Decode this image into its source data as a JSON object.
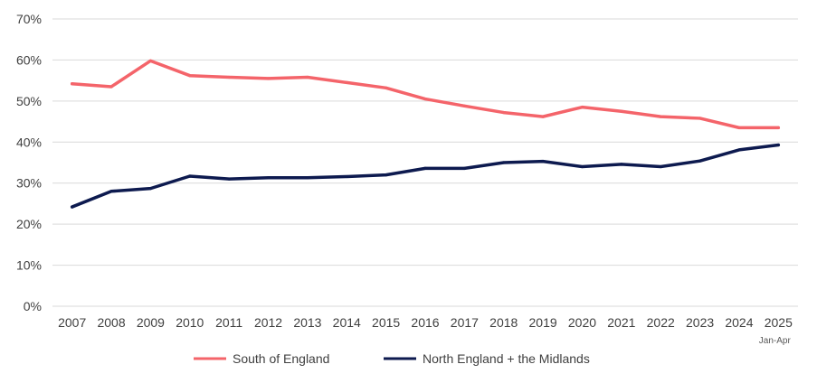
{
  "chart_data": {
    "type": "line",
    "title": "",
    "xlabel": "",
    "ylabel": "",
    "ylim": [
      0,
      70
    ],
    "ytick_step": 10,
    "y_tick_suffix": "%",
    "grid": true,
    "legend_position": "bottom",
    "categories": [
      "2007",
      "2008",
      "2009",
      "2010",
      "2011",
      "2012",
      "2013",
      "2014",
      "2015",
      "2016",
      "2017",
      "2018",
      "2019",
      "2020",
      "2021",
      "2022",
      "2023",
      "2024",
      "2025"
    ],
    "category_note": "Jan-Apr",
    "series": [
      {
        "name": "South of England",
        "color": "#f4646a",
        "values": [
          54.2,
          53.5,
          59.8,
          56.2,
          55.8,
          55.5,
          55.8,
          54.5,
          53.2,
          50.5,
          48.8,
          47.2,
          46.2,
          48.5,
          47.5,
          46.2,
          45.8,
          43.5,
          43.5
        ]
      },
      {
        "name": "North England + the Midlands",
        "color": "#0d1a4f",
        "values": [
          24.2,
          28.0,
          28.7,
          31.7,
          31.0,
          31.3,
          31.3,
          31.6,
          32.0,
          33.6,
          33.6,
          35.0,
          35.3,
          34.0,
          34.6,
          34.0,
          35.4,
          38.1,
          39.3
        ]
      }
    ]
  }
}
